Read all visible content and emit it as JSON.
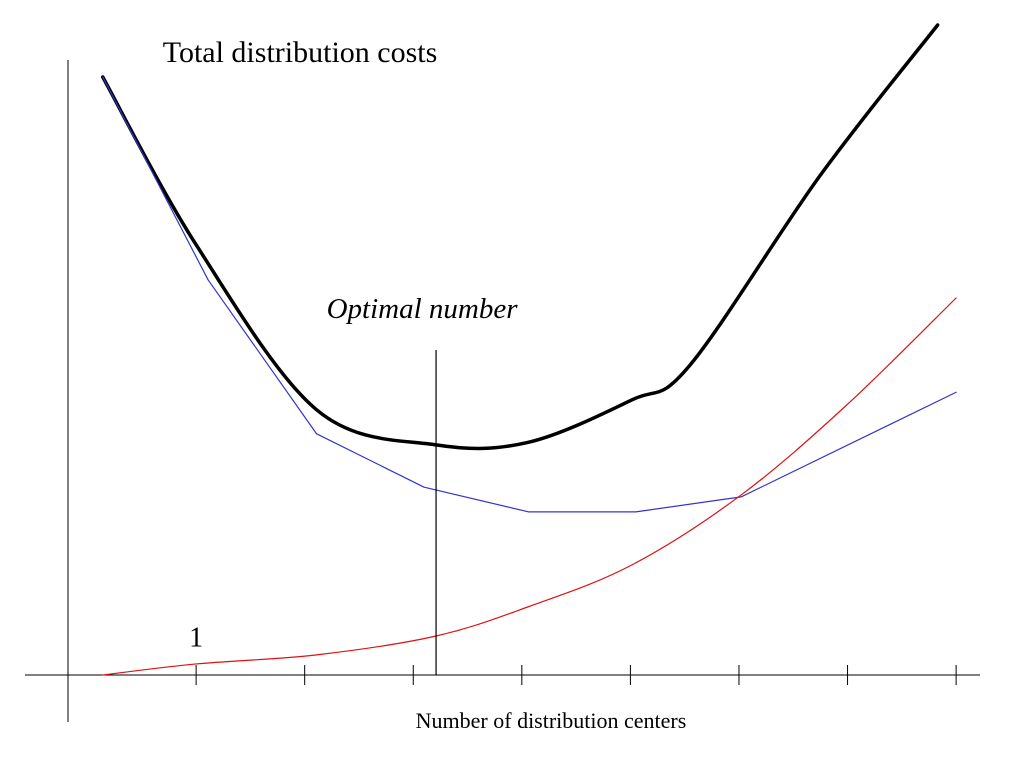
{
  "chart_data": {
    "type": "line",
    "title": "Total distribution costs",
    "x_label": "Number of distribution centers",
    "xlim": [
      -0.18,
      8.22
    ],
    "ylim": [
      0,
      100
    ],
    "xticks": [
      1,
      2,
      3,
      4,
      5,
      6,
      7,
      8
    ],
    "series": [
      {
        "color": "#000000",
        "x": [
          0.14,
          1,
          2.11,
          3.21,
          4.06,
          5.01,
          5.55,
          6.75,
          7.83
        ],
        "values": [
          92,
          66.2,
          40.8,
          35.4,
          35.8,
          42.3,
          47.7,
          76.9,
          100
        ]
      },
      {
        "color": "#3333cc",
        "x": [
          0.14,
          1.11,
          2.11,
          3.1,
          4.06,
          5.05,
          6.02,
          8.0
        ],
        "values": [
          92,
          60.8,
          37.1,
          28.9,
          25.1,
          25.1,
          27.4,
          43.5
        ]
      },
      {
        "color": "#dd1111",
        "x": [
          0.14,
          1,
          2.11,
          3.21,
          4.06,
          5.01,
          6.02,
          6.99,
          8.0
        ],
        "values": [
          0,
          1.7,
          3.1,
          6,
          10.5,
          16.9,
          27.7,
          41.5,
          58
        ]
      }
    ],
    "marker": {
      "text": "Optimal number",
      "x": 3.21,
      "y": 50
    },
    "annotation": {
      "text": "1",
      "x": 1,
      "y": 3.5
    }
  }
}
